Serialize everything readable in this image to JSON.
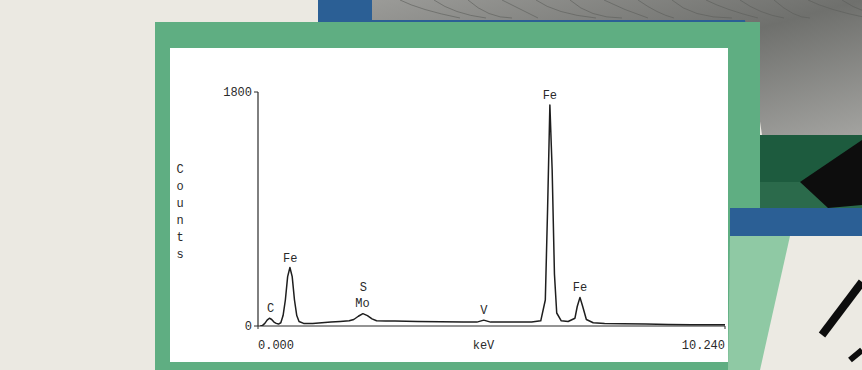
{
  "chart_data": {
    "type": "line",
    "x_label": "keV",
    "y_label": "Counts",
    "xlim": [
      0,
      10.24
    ],
    "xticks": [
      {
        "value": 0,
        "label": "0.000"
      },
      {
        "value": 10.24,
        "label": "10.240"
      }
    ],
    "ylim": [
      0,
      1800
    ],
    "yticks": [
      0,
      1800
    ],
    "grid": false,
    "x": [
      0.05,
      0.1,
      0.15,
      0.2,
      0.25,
      0.3,
      0.35,
      0.4,
      0.45,
      0.5,
      0.55,
      0.6,
      0.65,
      0.7,
      0.75,
      0.8,
      0.85,
      0.9,
      1.0,
      1.2,
      1.4,
      1.6,
      1.8,
      2.0,
      2.1,
      2.2,
      2.3,
      2.4,
      2.5,
      2.6,
      2.8,
      3.0,
      3.5,
      4.0,
      4.5,
      4.8,
      4.95,
      5.1,
      5.5,
      6.0,
      6.2,
      6.3,
      6.35,
      6.4,
      6.45,
      6.5,
      6.55,
      6.65,
      6.8,
      6.95,
      7.0,
      7.06,
      7.12,
      7.2,
      7.35,
      7.6,
      8.0,
      8.5,
      9.0,
      9.5,
      10.24
    ],
    "series": [
      {
        "name": "Counts",
        "color": "#1e1e1e",
        "values": [
          0,
          5,
          20,
          45,
          60,
          50,
          30,
          20,
          15,
          25,
          80,
          200,
          380,
          450,
          380,
          200,
          80,
          35,
          20,
          20,
          25,
          30,
          35,
          40,
          50,
          75,
          95,
          80,
          55,
          40,
          38,
          38,
          35,
          33,
          30,
          30,
          45,
          30,
          30,
          30,
          40,
          200,
          900,
          1700,
          1200,
          400,
          100,
          40,
          35,
          60,
          150,
          220,
          150,
          50,
          25,
          20,
          18,
          15,
          12,
          10,
          10
        ]
      }
    ],
    "annotations": [
      {
        "text": "C",
        "x": 0.277,
        "y": 60
      },
      {
        "text": "Fe",
        "x": 0.705,
        "y": 450
      },
      {
        "text": "S",
        "x": 2.31,
        "y": 223
      },
      {
        "text": "Mo",
        "x": 2.29,
        "y": 100
      },
      {
        "text": "V",
        "x": 4.95,
        "y": 46
      },
      {
        "text": "Fe",
        "x": 6.4,
        "y": 1700
      },
      {
        "text": "Fe",
        "x": 7.06,
        "y": 220
      }
    ]
  }
}
